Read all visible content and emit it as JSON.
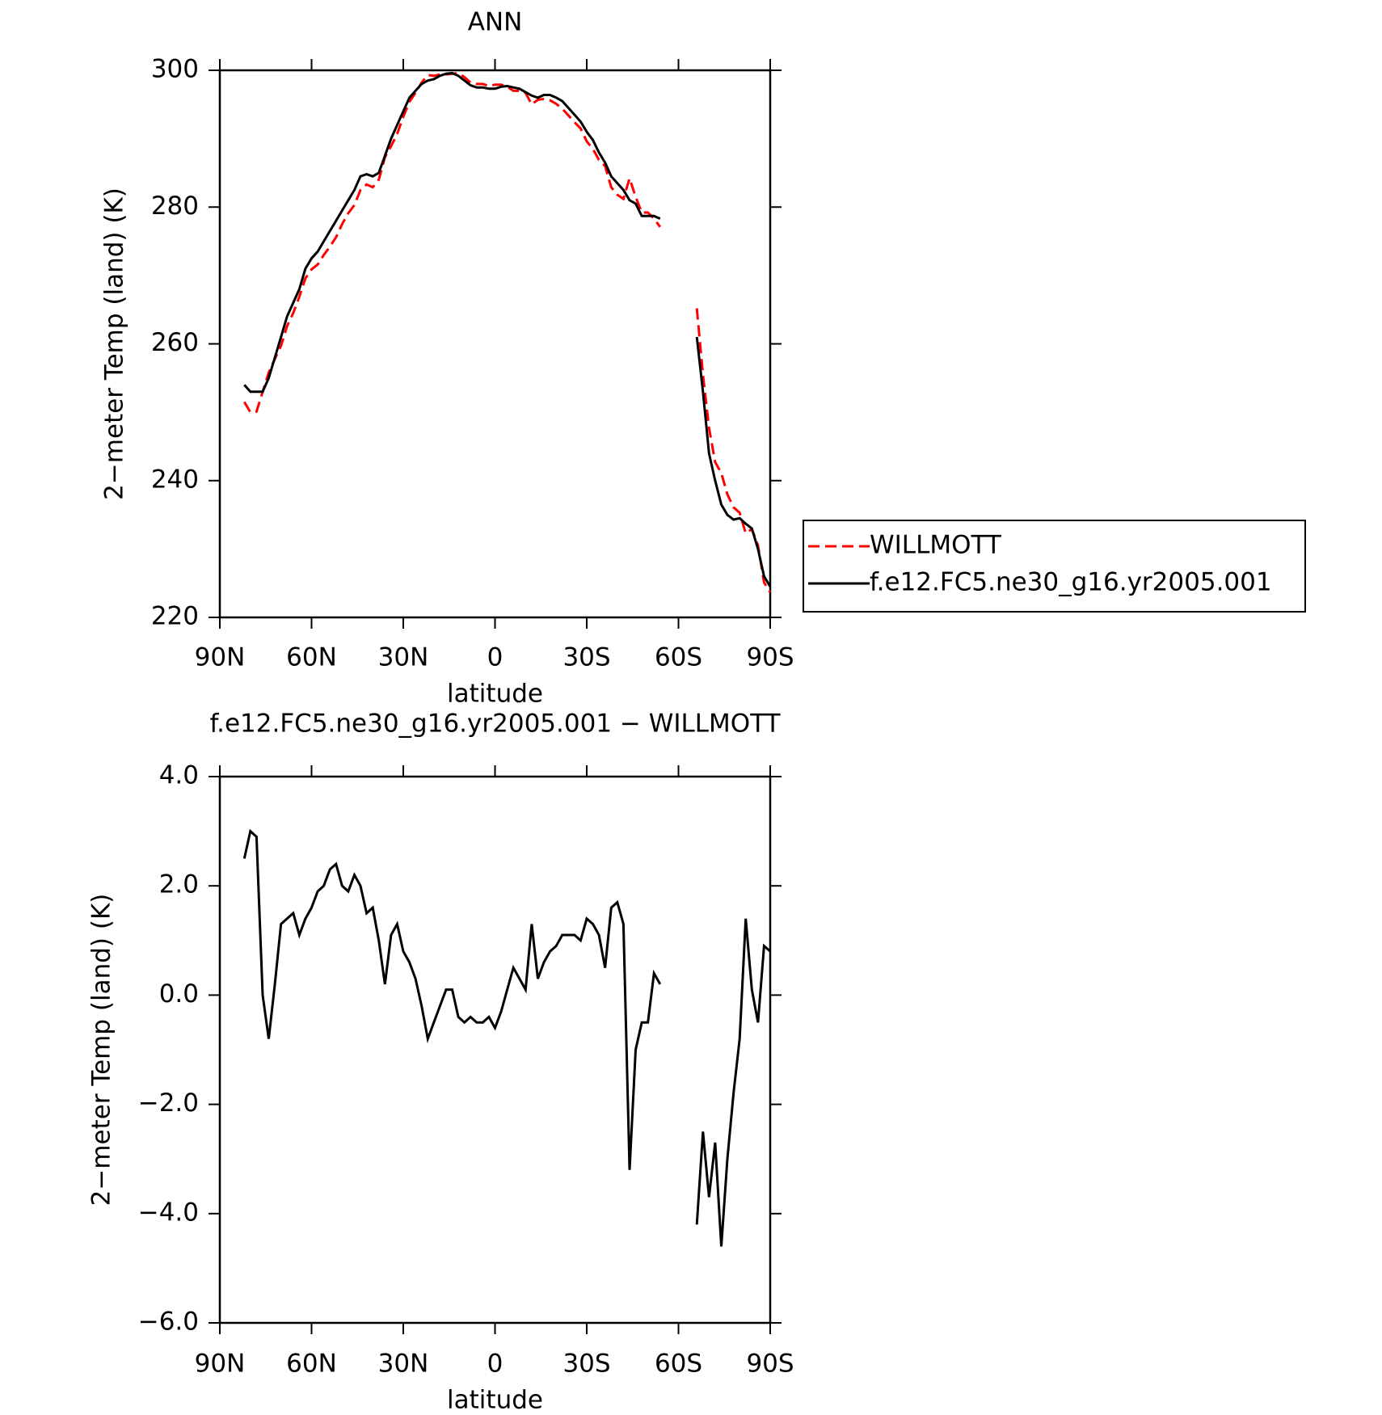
{
  "chart_data": [
    {
      "type": "line",
      "title": "ANN",
      "x_label": "latitude",
      "y_label": "2−meter Temp (land) (K)",
      "xlim": [
        90,
        -90
      ],
      "xticks": [
        {
          "value": 90,
          "label": "90N"
        },
        {
          "value": 60,
          "label": "60N"
        },
        {
          "value": 30,
          "label": "30N"
        },
        0,
        {
          "value": -30,
          "label": "30S"
        },
        {
          "value": -60,
          "label": "60S"
        },
        {
          "value": -90,
          "label": "90S"
        }
      ],
      "ylim": [
        220,
        300
      ],
      "yticks": [
        220,
        240,
        260,
        280,
        300
      ],
      "legend": "outside-right",
      "x": [
        82,
        80,
        78,
        76,
        74,
        72,
        70,
        68,
        66,
        64,
        62,
        60,
        58,
        56,
        54,
        52,
        50,
        48,
        46,
        44,
        42,
        40,
        38,
        36,
        34,
        32,
        30,
        28,
        26,
        24,
        22,
        20,
        18,
        16,
        14,
        12,
        10,
        8,
        6,
        4,
        2,
        0,
        -2,
        -4,
        -6,
        -8,
        -10,
        -12,
        -14,
        -16,
        -18,
        -20,
        -22,
        -24,
        -26,
        -28,
        -30,
        -32,
        -34,
        -36,
        -38,
        -40,
        -42,
        -44,
        -46,
        -48,
        -50,
        -52,
        -54,
        -60,
        -66,
        -68,
        -70,
        -72,
        -74,
        -76,
        -78,
        -80,
        -82,
        -84,
        -86,
        -88,
        -90
      ],
      "series": [
        {
          "name": "WILLMOTT",
          "color": "#ff0000",
          "dash": "dashed",
          "values": [
            251.5,
            250,
            250.1,
            253,
            255.8,
            257.8,
            259.7,
            262.6,
            264.5,
            266.9,
            269.6,
            270.9,
            271.6,
            273,
            274.2,
            275.6,
            277.5,
            279.1,
            280.3,
            282.5,
            283.3,
            282.9,
            284,
            287.3,
            288.9,
            290.7,
            293.2,
            295.4,
            296.7,
            298.2,
            299.3,
            299.2,
            299.4,
            299.4,
            299.5,
            299.6,
            299,
            298.2,
            298,
            298,
            297.7,
            297.9,
            297.9,
            297.6,
            297,
            297,
            296.7,
            295,
            295.7,
            295.8,
            295.6,
            295.1,
            294.4,
            293.4,
            292.4,
            291.5,
            289.6,
            288.5,
            286.9,
            286,
            282.9,
            281.8,
            281.2,
            284.2,
            281.5,
            279.2,
            279.2,
            278.3,
            277.1,
            null,
            265.2,
            255.5,
            247.7,
            242.7,
            241.1,
            238,
            236.1,
            235.3,
            232.3,
            232.9,
            230.5,
            225.1,
            223.7
          ]
        },
        {
          "name": "f.e12.FC5.ne30_g16.yr2005.001",
          "color": "#000000",
          "dash": "solid",
          "values": [
            254,
            253,
            253,
            253,
            255,
            258,
            261,
            264,
            266,
            268,
            271,
            272.5,
            273.5,
            275,
            276.5,
            278,
            279.5,
            281,
            282.5,
            284.5,
            284.8,
            284.5,
            285,
            287.5,
            290,
            292,
            294,
            296,
            297,
            298,
            298.5,
            298.7,
            299.2,
            299.5,
            299.6,
            299.2,
            298.5,
            297.8,
            297.5,
            297.5,
            297.3,
            297.3,
            297.6,
            297.7,
            297.5,
            297.3,
            296.8,
            296.3,
            296,
            296.4,
            296.4,
            296,
            295.5,
            294.5,
            293.5,
            292.5,
            291,
            289.8,
            288,
            286.5,
            284.5,
            283.5,
            282.5,
            281,
            280.5,
            278.7,
            278.7,
            278.7,
            278.3,
            null,
            261,
            253,
            244,
            240,
            236.5,
            235,
            234.3,
            234.5,
            233.7,
            233,
            230,
            226,
            224.5
          ]
        }
      ]
    },
    {
      "type": "line",
      "title": "f.e12.FC5.ne30_g16.yr2005.001 − WILLMOTT",
      "x_label": "latitude",
      "y_label": "2−meter Temp (land) (K)",
      "xlim": [
        90,
        -90
      ],
      "xticks": [
        {
          "value": 90,
          "label": "90N"
        },
        {
          "value": 60,
          "label": "60N"
        },
        {
          "value": 30,
          "label": "30N"
        },
        0,
        {
          "value": -30,
          "label": "30S"
        },
        {
          "value": -60,
          "label": "60S"
        },
        {
          "value": -90,
          "label": "90S"
        }
      ],
      "ylim": [
        -6,
        4
      ],
      "yticks": [
        {
          "value": -6,
          "label": "−6.0"
        },
        {
          "value": -4,
          "label": "−4.0"
        },
        {
          "value": -2,
          "label": "−2.0"
        },
        {
          "value": 0,
          "label": "0.0"
        },
        {
          "value": 2,
          "label": "2.0"
        },
        {
          "value": 4,
          "label": "4.0"
        }
      ],
      "x": [
        82,
        80,
        78,
        76,
        74,
        72,
        70,
        68,
        66,
        64,
        62,
        60,
        58,
        56,
        54,
        52,
        50,
        48,
        46,
        44,
        42,
        40,
        38,
        36,
        34,
        32,
        30,
        28,
        26,
        24,
        22,
        20,
        18,
        16,
        14,
        12,
        10,
        8,
        6,
        4,
        2,
        0,
        -2,
        -4,
        -6,
        -8,
        -10,
        -12,
        -14,
        -16,
        -18,
        -20,
        -22,
        -24,
        -26,
        -28,
        -30,
        -32,
        -34,
        -36,
        -38,
        -40,
        -42,
        -44,
        -46,
        -48,
        -50,
        -52,
        -54,
        -60,
        -66,
        -68,
        -70,
        -72,
        -74,
        -76,
        -78,
        -80,
        -82,
        -84,
        -86,
        -88,
        -90
      ],
      "series": [
        {
          "color": "#000000",
          "dash": "solid",
          "values": [
            2.5,
            3.0,
            2.9,
            0.0,
            -0.8,
            0.2,
            1.3,
            1.4,
            1.5,
            1.1,
            1.4,
            1.6,
            1.9,
            2.0,
            2.3,
            2.4,
            2.0,
            1.9,
            2.2,
            2.0,
            1.5,
            1.6,
            1.0,
            0.2,
            1.1,
            1.3,
            0.8,
            0.6,
            0.3,
            -0.2,
            -0.8,
            -0.5,
            -0.2,
            0.1,
            0.1,
            -0.4,
            -0.5,
            -0.4,
            -0.5,
            -0.5,
            -0.4,
            -0.6,
            -0.3,
            0.1,
            0.5,
            0.3,
            0.1,
            1.3,
            0.3,
            0.6,
            0.8,
            0.9,
            1.1,
            1.1,
            1.1,
            1.0,
            1.4,
            1.3,
            1.1,
            0.5,
            1.6,
            1.7,
            1.3,
            -3.2,
            -1.0,
            -0.5,
            -0.5,
            0.4,
            0.2,
            null,
            -4.2,
            -2.5,
            -3.7,
            -2.7,
            -4.6,
            -3.0,
            -1.8,
            -0.8,
            1.4,
            0.1,
            -0.5,
            0.9,
            0.8
          ]
        }
      ]
    }
  ]
}
